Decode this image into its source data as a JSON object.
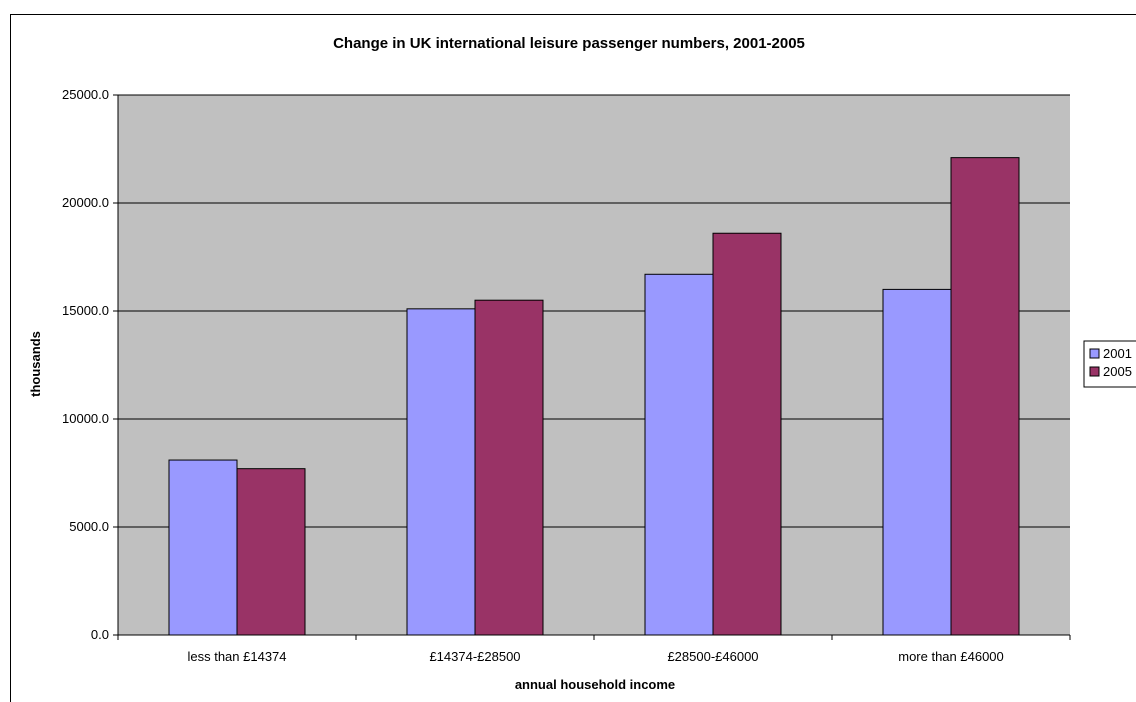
{
  "chart_data": {
    "type": "bar",
    "title": "Change in UK international leisure passenger numbers, 2001-2005",
    "xlabel": "annual household income",
    "ylabel": "thousands",
    "categories": [
      "less than £14374",
      "£14374-£28500",
      "£28500-£46000",
      "more than £46000"
    ],
    "series": [
      {
        "name": "2001",
        "values": [
          8100,
          15100,
          16700,
          16000
        ],
        "color": "#9999ff"
      },
      {
        "name": "2005",
        "values": [
          7700,
          15500,
          18600,
          22100
        ],
        "color": "#993366"
      }
    ],
    "ylim": [
      0,
      25000
    ],
    "yticks": [
      0,
      5000,
      10000,
      15000,
      20000,
      25000
    ],
    "ytick_labels": [
      "0.0",
      "5000.0",
      "10000.0",
      "15000.0",
      "20000.0",
      "25000.0"
    ],
    "plot_background": "#c0c0c0",
    "grid": true,
    "legend_position": "right"
  }
}
